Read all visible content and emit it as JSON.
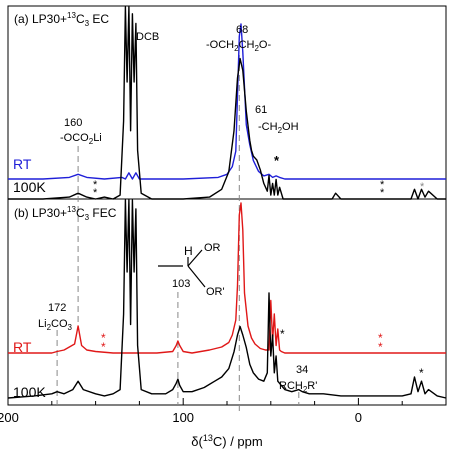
{
  "chart_data": [
    {
      "type": "line",
      "panel_label": "(a) LP30+",
      "panel_sup": "13",
      "panel_suffix": "C",
      "panel_sub": "3",
      "panel_tail": " EC",
      "series": [
        {
          "name": "RT",
          "color": "#1f1fd8",
          "x": [
            200,
            180,
            165,
            160,
            155,
            145,
            135,
            133,
            131,
            129,
            127,
            125,
            115,
            100,
            80,
            75,
            72,
            70,
            68,
            67,
            66,
            64,
            62,
            60,
            57,
            54,
            51,
            49,
            47,
            45,
            42,
            35,
            20,
            10,
            0,
            -10,
            -20,
            -30,
            -40,
            -50
          ],
          "y": [
            0.0,
            0.0,
            0.01,
            0.03,
            0.01,
            0.0,
            0.01,
            0.0,
            0.04,
            0.0,
            0.04,
            0.0,
            0.0,
            0.0,
            0.01,
            0.03,
            0.08,
            0.18,
            0.92,
            1.0,
            0.82,
            0.35,
            0.22,
            0.12,
            0.05,
            0.02,
            0.03,
            0.01,
            0.02,
            0.01,
            0.0,
            0.0,
            0.0,
            0.0,
            0.0,
            0.0,
            0.0,
            0.0,
            0.0,
            0.0
          ]
        },
        {
          "name": "100K",
          "color": "#000000",
          "x": [
            200,
            180,
            165,
            160,
            155,
            150,
            145,
            140,
            136,
            134,
            133,
            132,
            131,
            130,
            129,
            128,
            127,
            126,
            124,
            118,
            100,
            85,
            78,
            74,
            71,
            69,
            67.5,
            66,
            64,
            62,
            61,
            60,
            58,
            56,
            54,
            52,
            51,
            50,
            49,
            48,
            47,
            46,
            45,
            43,
            40,
            30,
            20,
            15,
            13,
            10,
            5,
            0,
            -10,
            -20,
            -25,
            -30,
            -32,
            -34,
            -36,
            -38,
            -40,
            -45,
            -50
          ],
          "y": [
            0.0,
            0.0,
            0.01,
            0.03,
            0.01,
            0.0,
            0.01,
            0.0,
            0.02,
            0.4,
            1.0,
            0.6,
            1.0,
            0.35,
            0.95,
            0.6,
            0.9,
            0.25,
            0.03,
            0.0,
            0.0,
            0.01,
            0.05,
            0.14,
            0.35,
            0.62,
            0.72,
            0.66,
            0.45,
            0.3,
            0.25,
            0.22,
            0.2,
            0.15,
            0.08,
            0.04,
            0.12,
            0.02,
            0.08,
            0.02,
            0.1,
            0.02,
            0.06,
            0.0,
            0.0,
            0.0,
            0.0,
            0.0,
            0.03,
            0.0,
            0.0,
            0.0,
            0.0,
            0.0,
            0.0,
            0.0,
            0.05,
            0.0,
            0.05,
            0.01,
            0.04,
            0.0,
            0.0
          ]
        }
      ],
      "xlim": [
        200,
        -50
      ]
    },
    {
      "type": "line",
      "panel_label": "(b) LP30+",
      "panel_sup": "13",
      "panel_suffix": "C",
      "panel_sub": "3",
      "panel_tail": " FEC",
      "series": [
        {
          "name": "RT",
          "color": "#e01818",
          "x": [
            200,
            175,
            172,
            168,
            162,
            160,
            158,
            155,
            150,
            140,
            135,
            133,
            131,
            129,
            127,
            125,
            115,
            106,
            104,
            103,
            102,
            100,
            95,
            85,
            78,
            74,
            72,
            70,
            69,
            68,
            67,
            66,
            65,
            63,
            61,
            59,
            56,
            53,
            51,
            50,
            49,
            48,
            47,
            46,
            45,
            44,
            42,
            40,
            30,
            20,
            10,
            0,
            -10,
            -20,
            -30,
            -40,
            -50
          ],
          "y": [
            0.0,
            0.0,
            0.01,
            0.02,
            0.06,
            0.18,
            0.05,
            0.02,
            0.01,
            0.0,
            0.0,
            0.0,
            0.0,
            0.0,
            0.0,
            0.0,
            0.0,
            0.01,
            0.05,
            0.08,
            0.05,
            0.01,
            0.0,
            0.02,
            0.04,
            0.07,
            0.12,
            0.22,
            0.45,
            0.92,
            1.0,
            0.82,
            0.4,
            0.18,
            0.1,
            0.06,
            0.03,
            0.02,
            0.02,
            0.35,
            0.08,
            0.26,
            0.05,
            0.16,
            0.02,
            0.01,
            0.0,
            0.0,
            0.0,
            0.0,
            0.0,
            0.0,
            0.0,
            0.0,
            0.0,
            0.0,
            0.0
          ]
        },
        {
          "name": "100K",
          "color": "#000000",
          "x": [
            200,
            185,
            175,
            172,
            168,
            163,
            160,
            157,
            150,
            145,
            140,
            136,
            134,
            133,
            132,
            131,
            130,
            129,
            128,
            127,
            126,
            124,
            118,
            110,
            106,
            104,
            103,
            102,
            100,
            95,
            88,
            82,
            78,
            74,
            71,
            69,
            67.5,
            66,
            64,
            62,
            60,
            57,
            54,
            52,
            51,
            50,
            49,
            48,
            47,
            46,
            44,
            42,
            38,
            34,
            32,
            28,
            20,
            10,
            0,
            -10,
            -20,
            -25,
            -30,
            -32,
            -34,
            -36,
            -38,
            -40,
            -45,
            -50
          ],
          "y": [
            0.0,
            0.01,
            0.02,
            0.03,
            0.02,
            0.04,
            0.08,
            0.04,
            0.02,
            0.01,
            0.02,
            0.04,
            0.4,
            1.0,
            0.6,
            1.0,
            0.35,
            0.95,
            0.6,
            0.9,
            0.25,
            0.04,
            0.02,
            0.02,
            0.04,
            0.07,
            0.09,
            0.06,
            0.03,
            0.03,
            0.05,
            0.08,
            0.1,
            0.14,
            0.22,
            0.3,
            0.34,
            0.3,
            0.24,
            0.16,
            0.12,
            0.09,
            0.08,
            0.12,
            0.5,
            0.2,
            0.3,
            0.12,
            0.2,
            0.08,
            0.06,
            0.04,
            0.03,
            0.04,
            0.03,
            0.02,
            0.02,
            0.01,
            0.01,
            0.01,
            0.01,
            0.01,
            0.02,
            0.1,
            0.03,
            0.08,
            0.02,
            0.04,
            0.01,
            0.0
          ]
        }
      ],
      "xlim": [
        200,
        -50
      ]
    }
  ],
  "axis": {
    "xlabel_prefix": "δ(",
    "xlabel_sup": "13",
    "xlabel_suffix": "C) / ppm",
    "ticks": [
      200,
      100,
      0
    ],
    "tick_labels": [
      "200",
      "100",
      "0"
    ],
    "xlim": [
      200,
      -50
    ]
  },
  "annotations": {
    "a_dcb": "DCB",
    "a_68": "68",
    "a_68_label": "-OCH",
    "a_68_sub1": "2",
    "a_68_mid": "CH",
    "a_68_sub2": "2",
    "a_68_end": "O-",
    "a_61": "61",
    "a_61_label": "-CH",
    "a_61_sub": "2",
    "a_61_end": "OH",
    "a_160": "160",
    "a_160_label": "-OCO",
    "a_160_sub": "2",
    "a_160_end": "Li",
    "b_172": "172",
    "b_172_label": "Li",
    "b_172_sub1": "2",
    "b_172_mid": "CO",
    "b_172_sub2": "3",
    "b_103": "103",
    "b_h": "H",
    "b_c": "C",
    "b_or": "OR",
    "b_or2": "OR'",
    "b_34": "34",
    "b_34_label": "RCH",
    "b_34_sub": "2",
    "b_34_end": "R'",
    "star": "*",
    "label_rt_a": "RT",
    "label_100k_a": "100K",
    "label_rt_b": "RT",
    "label_100k_b": "100K"
  },
  "colors": {
    "blue": "#1f1fd8",
    "red": "#e01818",
    "black": "#000000",
    "dash": "#888888"
  }
}
